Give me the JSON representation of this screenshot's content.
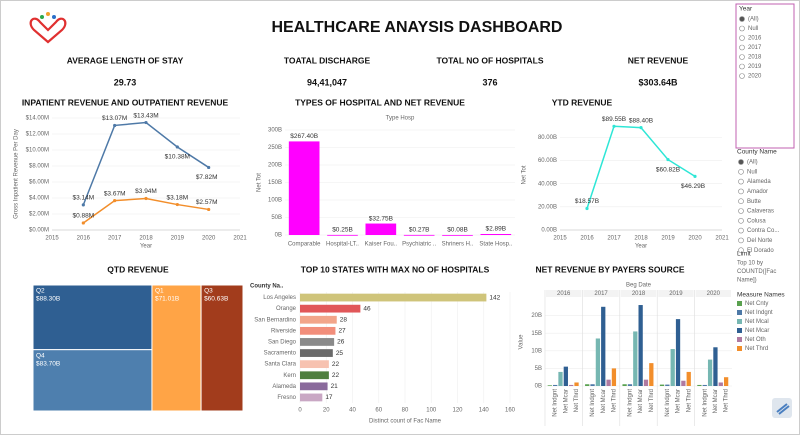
{
  "header": {
    "title": "HEALTHCARE ANAYSIS DASHBOARD"
  },
  "kpis": [
    {
      "label": "AVERAGE LENGTH OF STAY",
      "value": "29.73"
    },
    {
      "label": "TOATAL DISCHARGE",
      "value": "94,41,047"
    },
    {
      "label": "TOTAL NO OF HOSPITALS",
      "value": "376"
    },
    {
      "label": "NET REVENUE",
      "value": "$303.64B"
    }
  ],
  "filters": {
    "year": {
      "title": "Year",
      "options": [
        "(All)",
        "Null",
        "2016",
        "2017",
        "2018",
        "2019",
        "2020"
      ]
    },
    "county": {
      "title": "County Name",
      "options": [
        "(All)",
        "Null",
        "Alameda",
        "Amador",
        "Butte",
        "Calaveras",
        "Colusa",
        "Contra Co...",
        "Del Norte",
        "El Dorado"
      ]
    },
    "limit": {
      "title": "Limit",
      "lines": [
        "Top 10 by",
        "COUNTD([Fac",
        "Name])"
      ]
    }
  },
  "chart_data": [
    {
      "type": "line",
      "title": "INPATIENT REVENUE AND OUTPATIENT REVENUE",
      "x_label": "Year",
      "y_label": "Gross Inpatient Revenue Per Day",
      "x": [
        2016,
        2017,
        2018,
        2019,
        2020
      ],
      "series": [
        {
          "color": "#4e79a7",
          "values": [
            3.14,
            13.07,
            13.43,
            10.38,
            7.82
          ],
          "value_labels": [
            "$3.14M",
            "$13.07M",
            "$13.43M",
            "$10.38M",
            "$7.82M"
          ]
        },
        {
          "color": "#f28e2b",
          "values": [
            0.88,
            3.67,
            3.94,
            3.18,
            2.57
          ],
          "value_labels": [
            "$0.88M",
            "$3.67M",
            "$3.94M",
            "$3.18M",
            "$2.57M"
          ]
        }
      ],
      "xlim": [
        2015,
        2021
      ],
      "xticks": [
        2015,
        2016,
        2017,
        2018,
        2019,
        2020,
        2021
      ],
      "ylim": [
        0,
        14
      ],
      "yticks": [
        {
          "value": 0,
          "label": "$0.00M"
        },
        {
          "value": 2,
          "label": "$2.00M"
        },
        {
          "value": 4,
          "label": "$4.00M"
        },
        {
          "value": 6,
          "label": "$6.00M"
        },
        {
          "value": 8,
          "label": "$8.00M"
        },
        {
          "value": 10,
          "label": "$10.00M"
        },
        {
          "value": 12,
          "label": "$12.00M"
        },
        {
          "value": 14,
          "label": "$14.00M"
        }
      ],
      "grid": true
    },
    {
      "type": "bar",
      "title": "TYPES OF HOSPITAL AND NET REVENUE",
      "subtitle": "Type Hosp",
      "y_label": "Net Tot",
      "categories": [
        "Comparable",
        "Hospital-LT..",
        "Kaiser Fou..",
        "Psychiatric ..",
        "Shriners H..",
        "State Hosp.."
      ],
      "values": [
        267.4,
        0.25,
        32.75,
        0.27,
        0.08,
        2.89
      ],
      "value_labels": [
        "$267.40B",
        "$0.25B",
        "$32.75B",
        "$0.27B",
        "$0.08B",
        "$2.89B"
      ],
      "color": "#ff00ff",
      "ylim": [
        0,
        300
      ],
      "yticks": [
        {
          "value": 0,
          "label": "0B"
        },
        {
          "value": 50,
          "label": "50B"
        },
        {
          "value": 100,
          "label": "100B"
        },
        {
          "value": 150,
          "label": "150B"
        },
        {
          "value": 200,
          "label": "200B"
        },
        {
          "value": 250,
          "label": "250B"
        },
        {
          "value": 300,
          "label": "300B"
        }
      ],
      "grid": true
    },
    {
      "type": "line",
      "title": "YTD REVENUE",
      "x_label": "Year",
      "y_label": "Net Tot",
      "x": [
        2016,
        2017,
        2018,
        2019,
        2020
      ],
      "series": [
        {
          "color": "#2ee6d6",
          "values": [
            18.57,
            89.55,
            88.4,
            60.82,
            46.29
          ],
          "value_labels": [
            "$18.57B",
            "$89.55B",
            "$88.40B",
            "$60.82B",
            "$46.29B"
          ]
        }
      ],
      "xlim": [
        2015,
        2021
      ],
      "xticks": [
        2015,
        2016,
        2017,
        2018,
        2019,
        2020,
        2021
      ],
      "ylim": [
        0,
        95
      ],
      "yticks": [
        {
          "value": 0,
          "label": "0.00B"
        },
        {
          "value": 20,
          "label": "20.00B"
        },
        {
          "value": 40,
          "label": "40.00B"
        },
        {
          "value": 60,
          "label": "60.00B"
        },
        {
          "value": 80,
          "label": "80.00B"
        }
      ],
      "grid": true
    },
    {
      "type": "treemap",
      "title": "QTD REVENUE",
      "categories": [
        "Q2",
        "Q4",
        "Q1",
        "Q3"
      ],
      "values": [
        88.3,
        83.7,
        71.01,
        60.63
      ],
      "value_labels": [
        "$88.30B",
        "$83.70B",
        "$71.01B",
        "$60.63B"
      ],
      "colors": [
        "#2f5f92",
        "#4e7fae",
        "#ffa446",
        "#a23c1c"
      ]
    },
    {
      "type": "hbar",
      "title": "TOP 10 STATES WITH MAX NO OF HOSPITALS",
      "y_label": "County Na..",
      "x_label": "Distinct count of Fac Name",
      "categories": [
        "Los Angeles",
        "Orange",
        "San Bernardino",
        "Riverside",
        "San Diego",
        "Sacramento",
        "Santa Clara",
        "Kern",
        "Alameda",
        "Fresno"
      ],
      "values": [
        142,
        46,
        28,
        27,
        26,
        25,
        22,
        22,
        21,
        17
      ],
      "colors": [
        "#cfc47a",
        "#e15759",
        "#f2a58a",
        "#f28e7b",
        "#8a8a8a",
        "#6a6a6a",
        "#f7c2b0",
        "#4f7f3f",
        "#8a6a9c",
        "#c9a7c4"
      ],
      "xlim": [
        0,
        160
      ],
      "xticks": [
        0,
        20,
        40,
        60,
        80,
        100,
        120,
        140,
        160
      ],
      "grid": true
    },
    {
      "type": "grouped_bar",
      "title": "NET REVENUE BY PAYERS SOURCE",
      "subtitle": "Beg Date",
      "y_label": "Value",
      "legend_title": "Measure Names",
      "categories": [
        "2016",
        "2017",
        "2018",
        "2019",
        "2020"
      ],
      "series": [
        {
          "name": "Net Cnty",
          "color": "#59a14f",
          "values": [
            0.2,
            0.5,
            0.5,
            0.4,
            0.3
          ]
        },
        {
          "name": "Net Indgnt",
          "color": "#4e79a7",
          "values": [
            0.3,
            0.5,
            0.5,
            0.4,
            0.3
          ]
        },
        {
          "name": "Net Mcal",
          "color": "#76b7b2",
          "values": [
            4.0,
            13.5,
            15.5,
            10.5,
            7.5
          ]
        },
        {
          "name": "Net Mcar",
          "color": "#2f5f92",
          "values": [
            5.5,
            22.5,
            23.0,
            19.0,
            11.0
          ]
        },
        {
          "name": "Net Oth",
          "color": "#b07aa1",
          "values": [
            0.3,
            1.8,
            1.8,
            1.5,
            1.0
          ]
        },
        {
          "name": "Net Thrd",
          "color": "#f28e2b",
          "values": [
            1.0,
            5.0,
            6.5,
            4.0,
            2.5
          ]
        }
      ],
      "ylim": [
        0,
        25
      ],
      "yticks": [
        {
          "value": 0,
          "label": "0B"
        },
        {
          "value": 5,
          "label": "5B"
        },
        {
          "value": 10,
          "label": "10B"
        },
        {
          "value": 15,
          "label": "15B"
        },
        {
          "value": 20,
          "label": "20B"
        }
      ],
      "grid": true
    }
  ]
}
